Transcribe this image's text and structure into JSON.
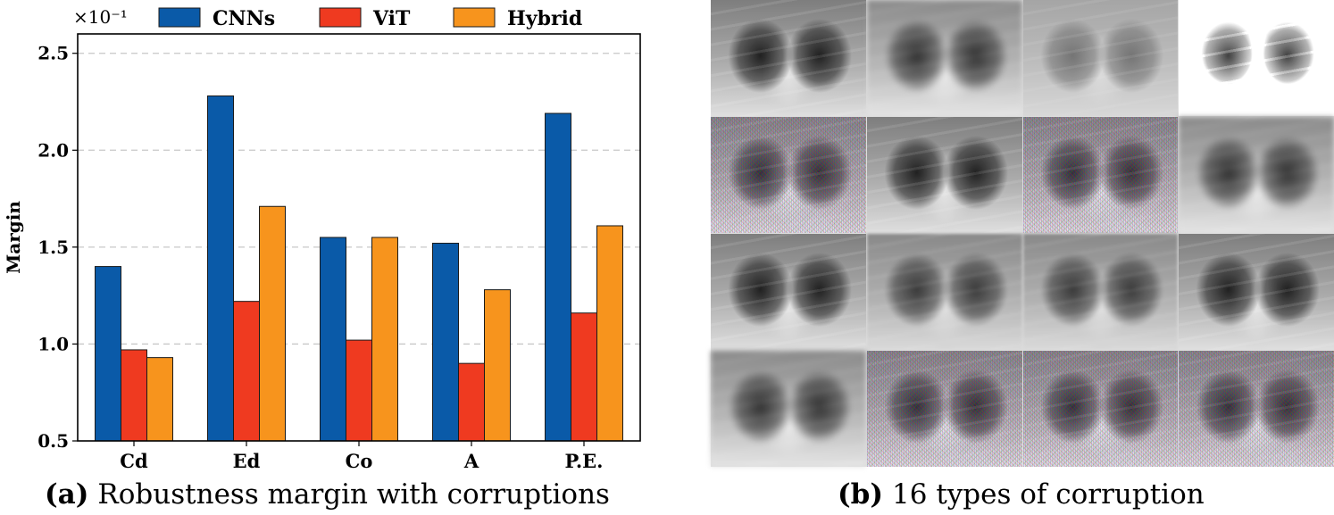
{
  "panel_a": {
    "caption_label": "(a)",
    "caption_text": "Robustness margin with corruptions"
  },
  "panel_b": {
    "caption_label": "(b)",
    "caption_text": "16 types of corruption",
    "tiles": [
      {
        "effect": "dark"
      },
      {
        "effect": "blur"
      },
      {
        "effect": "fog"
      },
      {
        "effect": "bright"
      },
      {
        "effect": "noisy"
      },
      {
        "effect": "dark"
      },
      {
        "effect": "noisy"
      },
      {
        "effect": "blur"
      },
      {
        "effect": "dark"
      },
      {
        "effect": "soft"
      },
      {
        "effect": "soft"
      },
      {
        "effect": "dark"
      },
      {
        "effect": "blur"
      },
      {
        "effect": "noisy"
      },
      {
        "effect": "noisy"
      },
      {
        "effect": "noisy"
      }
    ]
  },
  "chart_data": {
    "type": "bar",
    "title": "",
    "xlabel": "",
    "ylabel": "Margin",
    "scale_label": "×10⁻¹",
    "categories": [
      "Cd",
      "Ed",
      "Co",
      "A",
      "P.E."
    ],
    "series": [
      {
        "name": "CNNs",
        "color": "#0a5aa8",
        "values": [
          1.4,
          2.28,
          1.55,
          1.52,
          2.19
        ]
      },
      {
        "name": "ViT",
        "color": "#ef3a20",
        "values": [
          0.97,
          1.22,
          1.02,
          0.9,
          1.16
        ]
      },
      {
        "name": "Hybrid",
        "color": "#f7941d",
        "values": [
          0.93,
          1.71,
          1.55,
          1.28,
          1.61
        ]
      }
    ],
    "ylim": [
      0.5,
      2.6
    ],
    "yticks": [
      "0.5",
      "1.0",
      "1.5",
      "2.0",
      "2.5"
    ],
    "grid": true,
    "legend": "top"
  }
}
